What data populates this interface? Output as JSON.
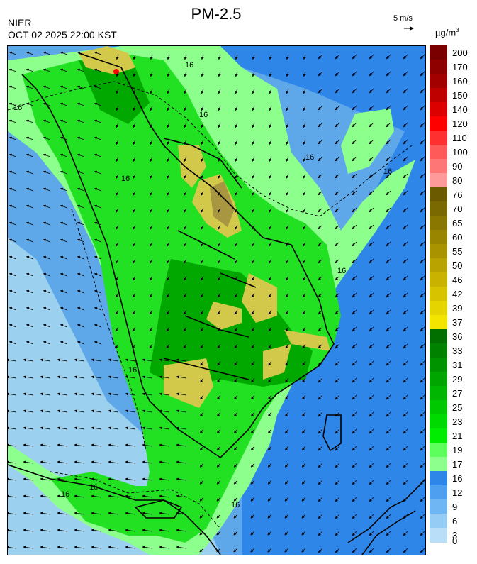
{
  "header": {
    "agency": "NIER",
    "timestamp": "OCT 02 2025 22:00 KST",
    "title": "PM-2.5"
  },
  "wind_reference": {
    "label": "5 m/s"
  },
  "unit": {
    "base": "µg/m",
    "sup": "3"
  },
  "contour_label": "16",
  "legend": {
    "labels": [
      "200",
      "170",
      "160",
      "150",
      "140",
      "120",
      "110",
      "100",
      "90",
      "80",
      "76",
      "70",
      "65",
      "60",
      "55",
      "50",
      "46",
      "42",
      "39",
      "37",
      "36",
      "33",
      "31",
      "29",
      "27",
      "25",
      "23",
      "21",
      "19",
      "17",
      "16",
      "12",
      "9",
      "6",
      "3",
      "0"
    ],
    "colors": [
      "#7a0000",
      "#8e0000",
      "#a20000",
      "#bf0000",
      "#dd0000",
      "#ff0000",
      "#ff3030",
      "#ff5a5a",
      "#ff7676",
      "#ff9a9a",
      "#6b5a00",
      "#7a6900",
      "#8a7700",
      "#9a8500",
      "#a99400",
      "#b9a300",
      "#c9b300",
      "#d8c300",
      "#e6d400",
      "#f3e500",
      "#006f00",
      "#008200",
      "#009300",
      "#00a500",
      "#00b600",
      "#00c800",
      "#00da00",
      "#00ec00",
      "#5cff5c",
      "#8cff8c",
      "#2e86e8",
      "#4e9ff0",
      "#6fb6f4",
      "#94ccf6",
      "#b9dff8"
    ]
  },
  "map": {
    "colors": {
      "sea_low": "#9bd0ee",
      "sea_mid": "#5ea8ea",
      "sea_high": "#2e86e8",
      "green_light": "#8cff8c",
      "green": "#22e022",
      "green_dark": "#00a800",
      "yellow": "#d2c94a",
      "olive": "#a89640",
      "coast": "#000000"
    }
  }
}
